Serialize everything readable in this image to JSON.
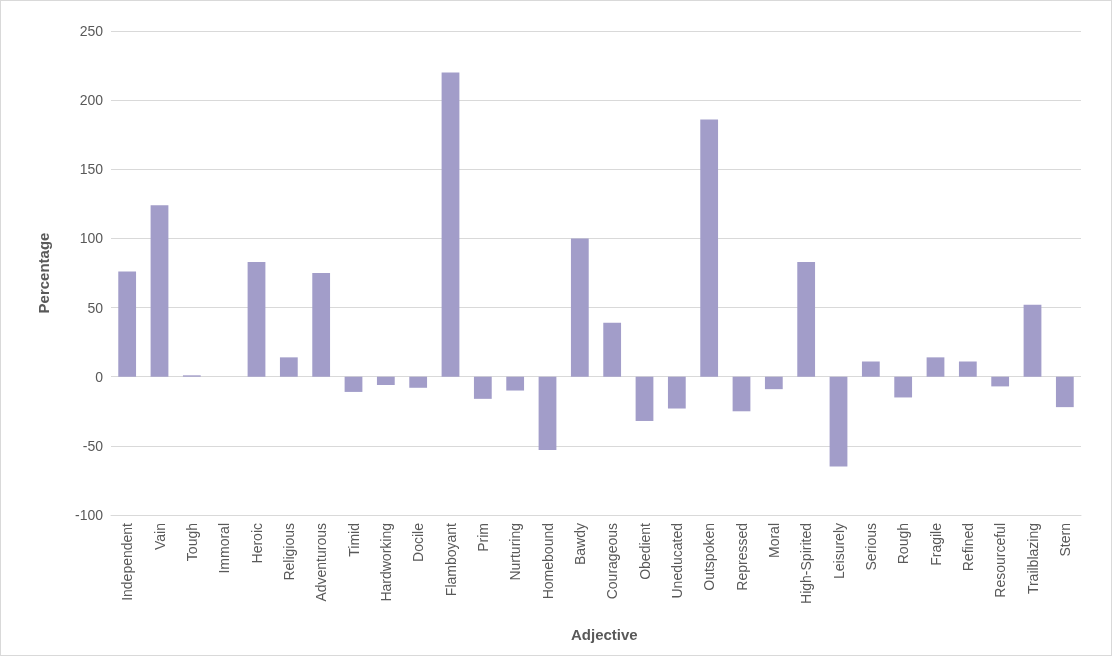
{
  "chart_data": {
    "type": "bar",
    "xlabel": "Adjective",
    "ylabel": "Percentage",
    "categories": [
      "Independent",
      "Vain",
      "Tough",
      "Immoral",
      "Heroic",
      "Religious",
      "Adventurous",
      "Timid",
      "Hardworking",
      "Docile",
      "Flamboyant",
      "Prim",
      "Nurturing",
      "Homebound",
      "Bawdy",
      "Courageous",
      "Obedient",
      "Uneducated",
      "Outspoken",
      "Repressed",
      "Moral",
      "High-Spirited",
      "Leisurely",
      "Serious",
      "Rough",
      "Fragile",
      "Refined",
      "Resourceful",
      "Trailblazing",
      "Stern"
    ],
    "values": [
      76,
      124,
      1,
      0,
      83,
      14,
      75,
      -11,
      -6,
      -8,
      220,
      -16,
      -10,
      -53,
      100,
      39,
      -32,
      -23,
      186,
      -25,
      -9,
      83,
      -65,
      11,
      -15,
      14,
      11,
      -7,
      52,
      -22
    ],
    "color": "#a29dc9",
    "ylim": [
      -100,
      250
    ],
    "yticks": [
      -100,
      -50,
      0,
      50,
      100,
      150,
      200,
      250
    ],
    "grid": "y"
  }
}
